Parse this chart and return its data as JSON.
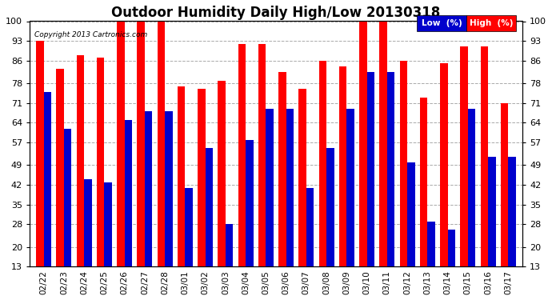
{
  "title": "Outdoor Humidity Daily High/Low 20130318",
  "copyright": "Copyright 2013 Cartronics.com",
  "dates": [
    "02/22",
    "02/23",
    "02/24",
    "02/25",
    "02/26",
    "02/27",
    "02/28",
    "03/01",
    "03/02",
    "03/03",
    "03/04",
    "03/05",
    "03/06",
    "03/07",
    "03/08",
    "03/09",
    "03/10",
    "03/11",
    "03/12",
    "03/13",
    "03/14",
    "03/15",
    "03/16",
    "03/17"
  ],
  "high": [
    93,
    83,
    88,
    87,
    100,
    100,
    100,
    77,
    76,
    79,
    92,
    92,
    82,
    76,
    86,
    84,
    100,
    100,
    86,
    73,
    85,
    91,
    91,
    71
  ],
  "low": [
    75,
    62,
    44,
    43,
    65,
    68,
    68,
    41,
    55,
    28,
    58,
    69,
    69,
    41,
    55,
    69,
    82,
    82,
    50,
    29,
    26,
    69,
    52,
    52
  ],
  "bar_width": 0.38,
  "high_color": "#ff0000",
  "low_color": "#0000cc",
  "bg_color": "#ffffff",
  "plot_bg_color": "#ffffff",
  "grid_color": "#aaaaaa",
  "ylim": [
    13,
    100
  ],
  "yticks": [
    13,
    20,
    28,
    35,
    42,
    49,
    57,
    64,
    71,
    78,
    86,
    93,
    100
  ],
  "title_fontsize": 12,
  "legend_low_label": "Low  (%)",
  "legend_high_label": "High  (%)",
  "low_color_legend": "#0000cc",
  "high_color_legend": "#ff0000"
}
